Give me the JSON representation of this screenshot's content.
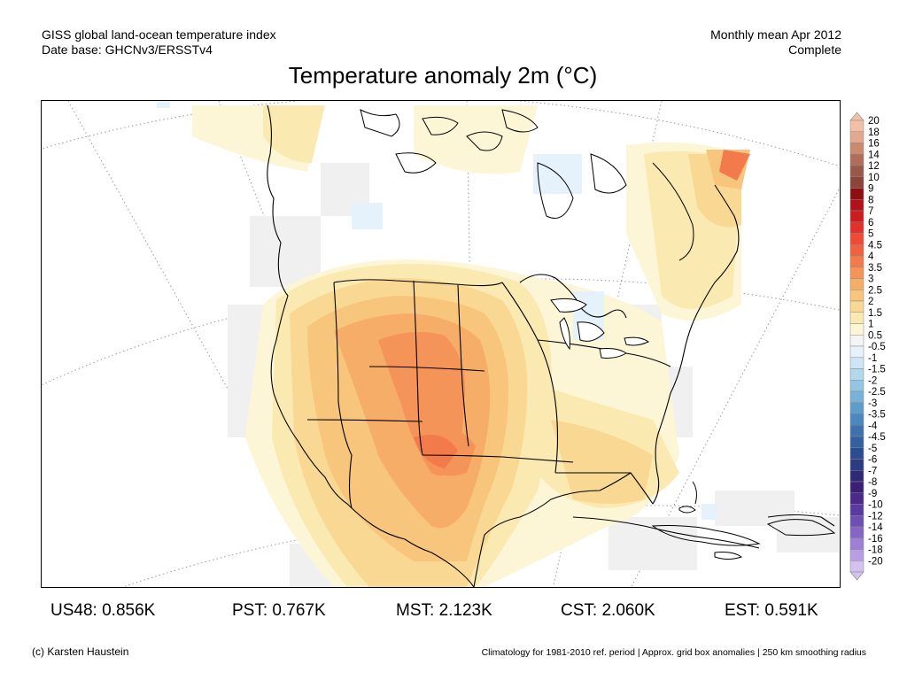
{
  "header": {
    "left_line1": "GISS global land-ocean temperature index",
    "left_line2": "Date base: GHCNv3/ERSSTv4",
    "right_line1": "Monthly mean Apr 2012",
    "right_line2": "Complete"
  },
  "title": "Temperature anomaly 2m (°C)",
  "legend": {
    "labels": [
      "20",
      "18",
      "16",
      "14",
      "12",
      "10",
      "9",
      "8",
      "7",
      "6",
      "5",
      "4.5",
      "4",
      "3.5",
      "3",
      "2.5",
      "2",
      "1.5",
      "1",
      "0.5",
      "-0.5",
      "-1",
      "-1.5",
      "-2",
      "-2.5",
      "-3",
      "-3.5",
      "-4",
      "-4.5",
      "-5",
      "-6",
      "-7",
      "-8",
      "-9",
      "-10",
      "-12",
      "-14",
      "-16",
      "-18",
      "-20"
    ],
    "colors": [
      "#f2c0a6",
      "#e3a98c",
      "#c98a6e",
      "#b06d57",
      "#9a5848",
      "#8a4538",
      "#8e0f12",
      "#b01217",
      "#cc1c1f",
      "#e2302a",
      "#ee4a35",
      "#f0613f",
      "#f27a4b",
      "#f49458",
      "#f6ad68",
      "#f8c57d",
      "#f9d893",
      "#fae9b0",
      "#fcf6d6",
      "#f4f4f4",
      "#e6f2fb",
      "#cde6f6",
      "#b2d8ee",
      "#94c6e3",
      "#78b2d8",
      "#5d9dcb",
      "#4a88bd",
      "#3d72ad",
      "#33609e",
      "#2b4d8f",
      "#2b3c82",
      "#2f2a77",
      "#3b1f74",
      "#4b2a8a",
      "#5a3aa0",
      "#6e4fb4",
      "#8566c6",
      "#9d80d4",
      "#b89ee2",
      "#d4c1ee"
    ]
  },
  "regions": [
    {
      "name": "US48",
      "value": "0.856K"
    },
    {
      "name": "PST",
      "value": "0.767K"
    },
    {
      "name": "MST",
      "value": "2.123K"
    },
    {
      "name": "CST",
      "value": "2.060K"
    },
    {
      "name": "EST",
      "value": "0.591K"
    }
  ],
  "footer": {
    "credit": "(c) Karsten Haustein",
    "note": "Climatology for 1981-2010 ref. period | Approx. grid box anomalies | 250 km smoothing radius"
  }
}
